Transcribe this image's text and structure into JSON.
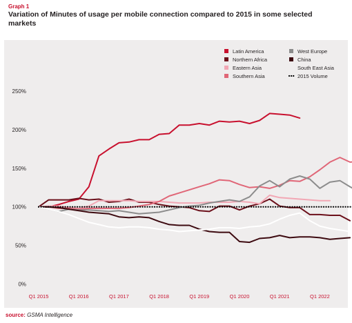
{
  "graph_label": "Graph 1",
  "title": "Variation of Minutes of usage per mobile connection compared to 2015 in some selected markets",
  "source_label": "source:",
  "source_value": "GSMA Intelligence",
  "chart_data": {
    "type": "line",
    "ylim": [
      0,
      250
    ],
    "yticks": [
      0,
      50,
      100,
      150,
      200,
      250
    ],
    "ytick_labels": [
      "0%",
      "50%",
      "100%",
      "150%",
      "200%",
      "250%"
    ],
    "xtick_labels": [
      "Q1 2015",
      "Q1 2016",
      "Q1 2017",
      "Q1 2018",
      "Q1 2019",
      "Q1 2020",
      "Q1 2021",
      "Q1 2022"
    ],
    "grid": false,
    "legend_position": "top-right",
    "series": [
      {
        "name": "Latin America",
        "color": "#c8102e",
        "style": "solid",
        "values": [
          100,
          100,
          103,
          107,
          110,
          126,
          166,
          175,
          183,
          184,
          187,
          187,
          194,
          195,
          206,
          206,
          208,
          206,
          211,
          210,
          211,
          208,
          212,
          221,
          220,
          219,
          215,
          null,
          null,
          null,
          null,
          null
        ]
      },
      {
        "name": "Northern Africa",
        "color": "#6b0f1a",
        "style": "solid",
        "values": [
          100,
          109,
          109,
          109,
          111,
          109,
          110,
          106,
          107,
          110,
          106,
          106,
          103,
          101,
          100,
          99,
          95,
          94,
          101,
          101,
          96,
          101,
          104,
          110,
          101,
          99,
          99,
          90,
          90,
          89,
          89,
          82
        ]
      },
      {
        "name": "Eastern Asia",
        "color": "#f2a7b4",
        "style": "solid",
        "values": [
          100,
          101,
          101,
          99,
          98,
          101,
          108,
          108,
          108,
          108,
          107,
          107,
          107,
          106,
          105,
          105,
          105,
          106,
          106,
          106,
          107,
          106,
          104,
          115,
          112,
          111,
          110,
          109,
          108,
          108,
          null,
          null
        ]
      },
      {
        "name": "Southern Asia",
        "color": "#e06677",
        "style": "solid",
        "values": [
          100,
          100,
          98,
          98,
          97,
          98,
          98,
          98,
          98,
          99,
          101,
          103,
          107,
          114,
          118,
          122,
          126,
          130,
          135,
          134,
          129,
          125,
          126,
          124,
          128,
          134,
          133,
          139,
          148,
          158,
          164,
          158,
          159
        ]
      },
      {
        "name": "West Europe",
        "color": "#8c8c8c",
        "style": "solid",
        "values": [
          100,
          97,
          94,
          97,
          96,
          96,
          95,
          94,
          95,
          93,
          91,
          92,
          93,
          96,
          99,
          101,
          102,
          105,
          107,
          109,
          107,
          113,
          127,
          134,
          126,
          136,
          140,
          136,
          124,
          132,
          134,
          126,
          119,
          130
        ]
      },
      {
        "name": "China",
        "color": "#3d0a10",
        "style": "solid",
        "values": [
          100,
          100,
          99,
          97,
          95,
          93,
          92,
          91,
          87,
          86,
          87,
          86,
          81,
          77,
          76,
          76,
          71,
          68,
          67,
          67,
          55,
          54,
          59,
          60,
          63,
          60,
          61,
          61,
          60,
          58,
          59,
          60
        ]
      },
      {
        "name": "South East Asia",
        "color": "#ffffff",
        "style": "solid",
        "values": [
          100,
          97,
          94,
          90,
          85,
          80,
          77,
          74,
          73,
          74,
          74,
          73,
          71,
          70,
          68,
          69,
          70,
          71,
          73,
          73,
          72,
          74,
          75,
          78,
          84,
          89,
          92,
          82,
          75,
          72,
          70,
          68
        ]
      },
      {
        "name": "2015 Volume",
        "color": "#000000",
        "style": "dotted",
        "values": [
          100,
          100,
          100,
          100,
          100,
          100,
          100,
          100,
          100,
          100,
          100,
          100,
          100,
          100,
          100,
          100,
          100,
          100,
          100,
          100,
          100,
          100,
          100,
          100,
          100,
          100,
          100,
          100,
          100,
          100,
          100,
          100,
          100,
          100
        ]
      }
    ]
  }
}
